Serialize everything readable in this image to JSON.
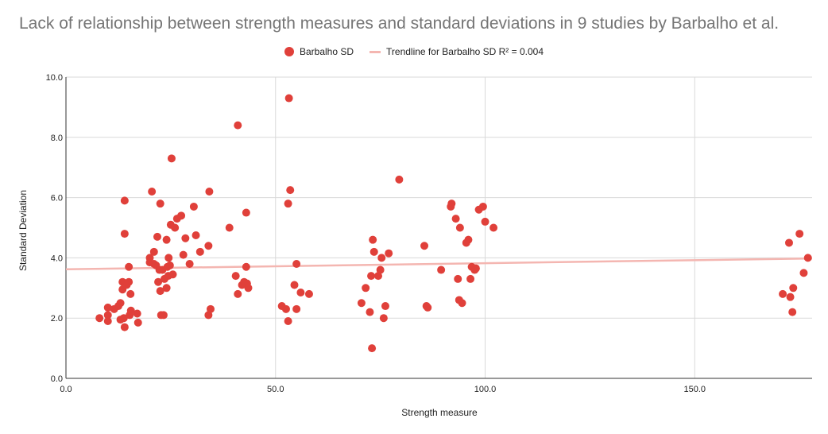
{
  "chart_data": {
    "type": "scatter",
    "title": "Lack of relationship between strength measures and standard deviations in 9 studies by Barbalho et al.",
    "xlabel": "Strength measure",
    "ylabel": "Standard Deviation",
    "xlim": [
      0,
      178
    ],
    "ylim": [
      0,
      10
    ],
    "x_ticks": [
      "0.0",
      "50.0",
      "100.0",
      "150.0"
    ],
    "y_ticks": [
      "0.0",
      "2.0",
      "4.0",
      "6.0",
      "8.0",
      "10.0"
    ],
    "grid": true,
    "legend_position": "top",
    "colors": {
      "points": "#e0403a",
      "trendline": "#f4b6b1"
    },
    "series": [
      {
        "name": "Barbalho SD",
        "points": [
          [
            8,
            2.0
          ],
          [
            10,
            2.35
          ],
          [
            10,
            1.9
          ],
          [
            10,
            2.1
          ],
          [
            11.5,
            2.3
          ],
          [
            12.5,
            2.4
          ],
          [
            13,
            2.5
          ],
          [
            13,
            1.95
          ],
          [
            13.5,
            3.2
          ],
          [
            13.5,
            2.95
          ],
          [
            13.8,
            2.0
          ],
          [
            14,
            1.7
          ],
          [
            14,
            4.8
          ],
          [
            14,
            5.9
          ],
          [
            14.5,
            3.1
          ],
          [
            15,
            3.2
          ],
          [
            15,
            3.7
          ],
          [
            15.2,
            2.1
          ],
          [
            15.4,
            2.8
          ],
          [
            15.5,
            2.25
          ],
          [
            17,
            2.15
          ],
          [
            17.2,
            1.85
          ],
          [
            20,
            4.0
          ],
          [
            20,
            3.85
          ],
          [
            20.5,
            6.2
          ],
          [
            21,
            3.8
          ],
          [
            21,
            4.2
          ],
          [
            21.5,
            3.75
          ],
          [
            21.8,
            4.7
          ],
          [
            22,
            3.2
          ],
          [
            22.3,
            3.6
          ],
          [
            22.5,
            5.8
          ],
          [
            22.5,
            2.9
          ],
          [
            22.7,
            2.1
          ],
          [
            23,
            3.6
          ],
          [
            23.3,
            2.1
          ],
          [
            23.5,
            3.3
          ],
          [
            24,
            4.6
          ],
          [
            24,
            3.0
          ],
          [
            24.2,
            3.7
          ],
          [
            24.4,
            3.4
          ],
          [
            24.5,
            4.0
          ],
          [
            24.8,
            3.75
          ],
          [
            25,
            5.1
          ],
          [
            25.2,
            7.3
          ],
          [
            25.5,
            3.45
          ],
          [
            26,
            5.0
          ],
          [
            26.5,
            5.3
          ],
          [
            27.5,
            5.4
          ],
          [
            28,
            4.1
          ],
          [
            28.5,
            4.65
          ],
          [
            29.5,
            3.8
          ],
          [
            30.5,
            5.7
          ],
          [
            31,
            4.75
          ],
          [
            32,
            4.2
          ],
          [
            34,
            2.1
          ],
          [
            34,
            4.4
          ],
          [
            34.2,
            6.2
          ],
          [
            34.5,
            2.3
          ],
          [
            39,
            5.0
          ],
          [
            40.5,
            3.4
          ],
          [
            41,
            8.4
          ],
          [
            41,
            2.8
          ],
          [
            42,
            3.1
          ],
          [
            42.5,
            3.2
          ],
          [
            43,
            5.5
          ],
          [
            43,
            3.7
          ],
          [
            43.2,
            3.15
          ],
          [
            43.5,
            3.0
          ],
          [
            51.5,
            2.4
          ],
          [
            52.5,
            2.3
          ],
          [
            53,
            1.9
          ],
          [
            53,
            5.8
          ],
          [
            53.2,
            9.3
          ],
          [
            53.5,
            6.25
          ],
          [
            54.5,
            3.1
          ],
          [
            55,
            3.8
          ],
          [
            55,
            2.3
          ],
          [
            56,
            2.85
          ],
          [
            58,
            2.8
          ],
          [
            70.5,
            2.5
          ],
          [
            71.5,
            3.0
          ],
          [
            72.5,
            2.2
          ],
          [
            72.8,
            3.4
          ],
          [
            73,
            1.0
          ],
          [
            73.2,
            4.6
          ],
          [
            73.5,
            4.2
          ],
          [
            74.5,
            3.4
          ],
          [
            75,
            3.6
          ],
          [
            75.3,
            4.0
          ],
          [
            75.8,
            2.0
          ],
          [
            76.2,
            2.4
          ],
          [
            77,
            4.15
          ],
          [
            79.5,
            6.6
          ],
          [
            85.5,
            4.4
          ],
          [
            86,
            2.4
          ],
          [
            86.3,
            2.35
          ],
          [
            89.5,
            3.6
          ],
          [
            91.8,
            5.7
          ],
          [
            92,
            5.8
          ],
          [
            93,
            5.3
          ],
          [
            93.5,
            3.3
          ],
          [
            93.8,
            2.6
          ],
          [
            94,
            5.0
          ],
          [
            94.5,
            2.5
          ],
          [
            95.5,
            4.5
          ],
          [
            96,
            4.6
          ],
          [
            96.5,
            3.3
          ],
          [
            96.8,
            3.7
          ],
          [
            97.5,
            3.6
          ],
          [
            97.8,
            3.65
          ],
          [
            98.5,
            5.6
          ],
          [
            99.5,
            5.7
          ],
          [
            100,
            5.2
          ],
          [
            102,
            5.0
          ],
          [
            171,
            2.8
          ],
          [
            172.5,
            4.5
          ],
          [
            172.8,
            2.7
          ],
          [
            173.3,
            2.2
          ],
          [
            173.5,
            3.0
          ],
          [
            175,
            4.8
          ],
          [
            176,
            3.5
          ],
          [
            177,
            4.0
          ]
        ]
      },
      {
        "name": "Trendline for Barbalho SD R² = 0.004",
        "line": [
          [
            0,
            3.62
          ],
          [
            178,
            3.98
          ]
        ]
      }
    ]
  }
}
